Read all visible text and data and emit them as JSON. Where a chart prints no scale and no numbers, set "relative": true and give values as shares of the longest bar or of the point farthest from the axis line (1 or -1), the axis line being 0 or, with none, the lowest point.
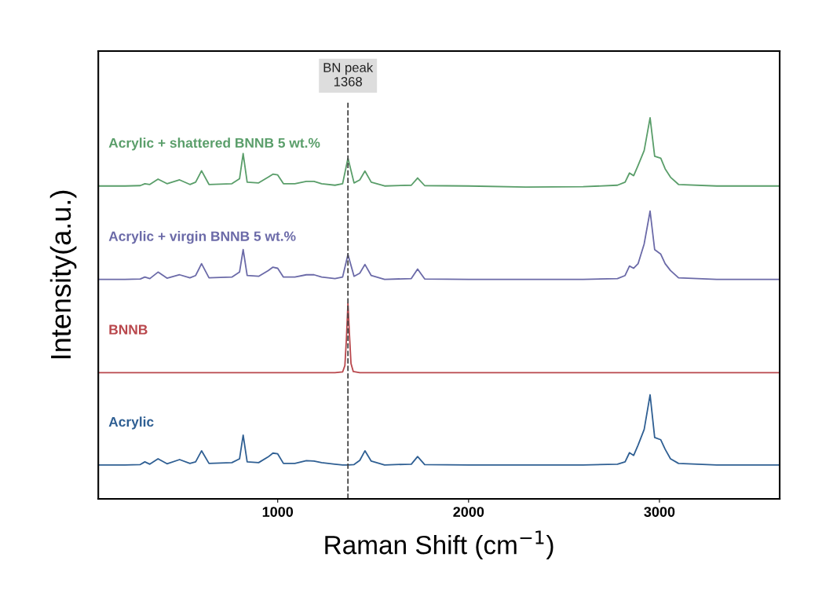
{
  "chart_data": {
    "type": "line",
    "relative": true,
    "xlabel": "Raman Shift (cm$^{−1}$)",
    "ylabel": "Intensity(a.u.)",
    "x": [
      60,
      200,
      280,
      304,
      330,
      373,
      420,
      486,
      540,
      570,
      601,
      640,
      760,
      800,
      819,
      840,
      900,
      950,
      975,
      1000,
      1030,
      1090,
      1150,
      1190,
      1230,
      1300,
      1340,
      1368,
      1400,
      1430,
      1457,
      1490,
      1560,
      1700,
      1733,
      1770,
      2000,
      2300,
      2600,
      2780,
      2820,
      2843,
      2865,
      2888,
      2920,
      2951,
      2975,
      3007,
      3030,
      3058,
      3100,
      3300,
      3630
    ],
    "xlim": [
      60,
      3630
    ],
    "xticks": [
      1000,
      2000,
      3000
    ],
    "series": [
      {
        "name": "Acrylic + shattered BNNB 5 wt.%",
        "color": "#5a9e6a",
        "values": [
          0.821,
          0.821,
          0.822,
          0.827,
          0.825,
          0.839,
          0.827,
          0.837,
          0.825,
          0.831,
          0.861,
          0.825,
          0.827,
          0.84,
          0.906,
          0.831,
          0.829,
          0.844,
          0.852,
          0.85,
          0.827,
          0.827,
          0.833,
          0.833,
          0.827,
          0.823,
          0.827,
          0.894,
          0.829,
          0.837,
          0.86,
          0.831,
          0.821,
          0.823,
          0.842,
          0.822,
          0.821,
          0.818,
          0.819,
          0.823,
          0.831,
          0.855,
          0.848,
          0.875,
          0.914,
          1.0,
          0.899,
          0.894,
          0.866,
          0.844,
          0.825,
          0.821,
          0.821
        ]
      },
      {
        "name": "Acrylic + virgin BNNB 5 wt.%",
        "color": "#6b6aa8",
        "values": [
          0.576,
          0.576,
          0.577,
          0.582,
          0.578,
          0.595,
          0.579,
          0.588,
          0.58,
          0.586,
          0.617,
          0.58,
          0.582,
          0.595,
          0.654,
          0.586,
          0.584,
          0.599,
          0.608,
          0.605,
          0.582,
          0.582,
          0.588,
          0.588,
          0.582,
          0.578,
          0.582,
          0.641,
          0.584,
          0.592,
          0.615,
          0.586,
          0.576,
          0.578,
          0.603,
          0.577,
          0.576,
          0.576,
          0.576,
          0.578,
          0.586,
          0.611,
          0.605,
          0.617,
          0.669,
          0.755,
          0.654,
          0.642,
          0.617,
          0.599,
          0.58,
          0.576,
          0.576
        ]
      },
      {
        "name": "BNNB",
        "color": "#b9474c",
        "x": [
          60,
          500,
          1000,
          1300,
          1340,
          1352,
          1360,
          1368,
          1376,
          1384,
          1396,
          1430,
          2000,
          2500,
          3000,
          3630
        ],
        "values": [
          0.331,
          0.331,
          0.331,
          0.331,
          0.333,
          0.35,
          0.42,
          0.513,
          0.43,
          0.355,
          0.334,
          0.331,
          0.331,
          0.331,
          0.331,
          0.331
        ]
      },
      {
        "name": "Acrylic",
        "color": "#2f5f93",
        "values": [
          0.089,
          0.089,
          0.09,
          0.097,
          0.091,
          0.105,
          0.092,
          0.103,
          0.093,
          0.097,
          0.126,
          0.093,
          0.095,
          0.105,
          0.167,
          0.097,
          0.095,
          0.11,
          0.12,
          0.118,
          0.093,
          0.093,
          0.1,
          0.099,
          0.095,
          0.091,
          0.089,
          0.089,
          0.09,
          0.101,
          0.126,
          0.099,
          0.089,
          0.091,
          0.111,
          0.09,
          0.089,
          0.089,
          0.089,
          0.091,
          0.097,
          0.121,
          0.114,
          0.141,
          0.182,
          0.273,
          0.161,
          0.155,
          0.13,
          0.105,
          0.093,
          0.089,
          0.089
        ]
      }
    ],
    "ref_lines": [
      {
        "axis": "x",
        "value": 1368,
        "label": "BN peak\n1368",
        "color": "#444444",
        "line_style": "dashed"
      }
    ],
    "grid": false,
    "marker": "none",
    "line_style": "solid"
  }
}
